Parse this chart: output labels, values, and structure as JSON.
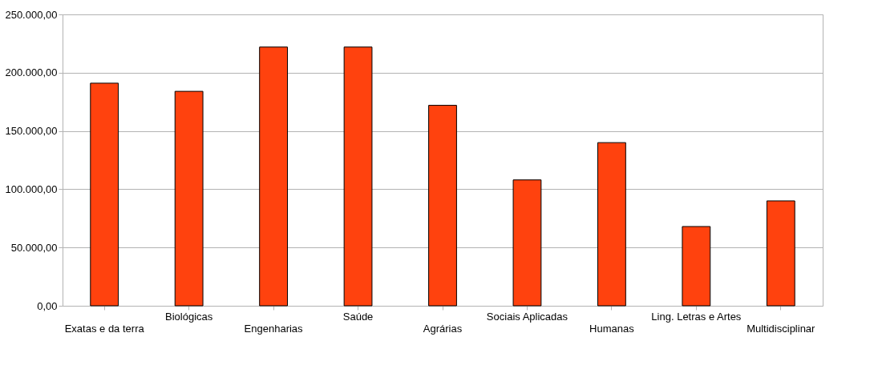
{
  "chart_data": {
    "type": "bar",
    "categories": [
      "Exatas e da terra",
      "Biológicas",
      "Engenharias",
      "Saúde",
      "Agrárias",
      "Sociais Aplicadas",
      "Humanas",
      "Ling. Letras e Artes",
      "Multidisciplinar"
    ],
    "values": [
      191000,
      184000,
      222000,
      222000,
      172000,
      108000,
      140000,
      68000,
      90000
    ],
    "color": "#ff420e",
    "ylim": [
      0,
      250000
    ],
    "yticks": [
      {
        "value": 0,
        "label": "0,00"
      },
      {
        "value": 50000,
        "label": "50.000,00"
      },
      {
        "value": 100000,
        "label": "100.000,00"
      },
      {
        "value": 150000,
        "label": "150.000,00"
      },
      {
        "value": 200000,
        "label": "200.000,00"
      },
      {
        "value": 250000,
        "label": "250.000,00"
      }
    ],
    "grid": "y"
  }
}
